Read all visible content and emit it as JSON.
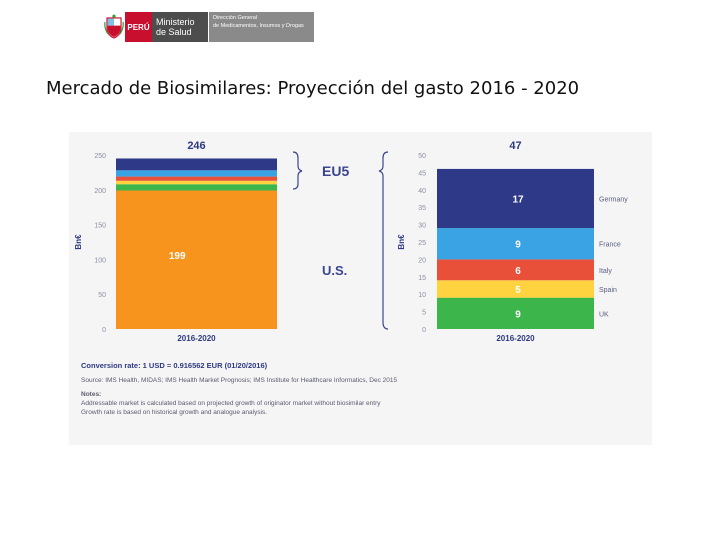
{
  "header": {
    "peru": "PERÚ",
    "ministry_line1": "Ministerio",
    "ministry_line2": "de Salud",
    "dir_line1": "Dirección General",
    "dir_line2": "de Medicamentos, Insumos y Drogas"
  },
  "page_title": "Mercado de Biosimilares: Proyección del gasto 2016 - 2020",
  "chart_data": [
    {
      "type": "bar",
      "stacked": true,
      "title": "",
      "ylabel": "Bn€",
      "ylim": [
        0,
        250
      ],
      "yticks": [
        "0",
        "50",
        "100",
        "150",
        "200",
        "250"
      ],
      "categories": [
        "2016-2020"
      ],
      "total_label": "246",
      "series": [
        {
          "name": "U.S.",
          "values": [
            199
          ],
          "color": "#f7941d",
          "label": "199"
        },
        {
          "name": "UK",
          "values": [
            9
          ],
          "color": "#3cb54a",
          "label": ""
        },
        {
          "name": "Spain",
          "values": [
            5
          ],
          "color": "#ffd23f",
          "label": ""
        },
        {
          "name": "Italy",
          "values": [
            6
          ],
          "color": "#e8503a",
          "label": ""
        },
        {
          "name": "France",
          "values": [
            9
          ],
          "color": "#3aa3e3",
          "label": ""
        },
        {
          "name": "Germany",
          "values": [
            17
          ],
          "color": "#2e3a87",
          "label": ""
        }
      ]
    },
    {
      "type": "bar",
      "stacked": true,
      "title": "",
      "ylabel": "Bn€",
      "ylim": [
        0,
        50
      ],
      "yticks": [
        "0",
        "5",
        "10",
        "15",
        "20",
        "25",
        "30",
        "35",
        "40",
        "45",
        "50"
      ],
      "categories": [
        "2016-2020"
      ],
      "total_label": "47",
      "series": [
        {
          "name": "UK",
          "values": [
            9
          ],
          "color": "#3cb54a",
          "label": "9"
        },
        {
          "name": "Spain",
          "values": [
            5
          ],
          "color": "#ffd23f",
          "label": "5"
        },
        {
          "name": "Italy",
          "values": [
            6
          ],
          "color": "#e8503a",
          "label": "6"
        },
        {
          "name": "France",
          "values": [
            9
          ],
          "color": "#3aa3e3",
          "label": "9"
        },
        {
          "name": "Germany",
          "values": [
            17
          ],
          "color": "#2e3a87",
          "label": "17"
        }
      ]
    }
  ],
  "legend": {
    "eu5": "EU5",
    "us": "U.S."
  },
  "notes": {
    "conversion": "Conversion rate: 1 USD = 0.916562 EUR (01/20/2016)",
    "source": "Source: IMS Health, MIDAS; IMS Health Market Prognosis; IMS Institute for Healthcare Informatics, Dec 2015",
    "notes_heading": "Notes:",
    "note1": "Addressable market is calculated based on projected growth of originator market without biosimilar entry",
    "note2": "Growth rate is based on historical growth and analogue analysis."
  }
}
